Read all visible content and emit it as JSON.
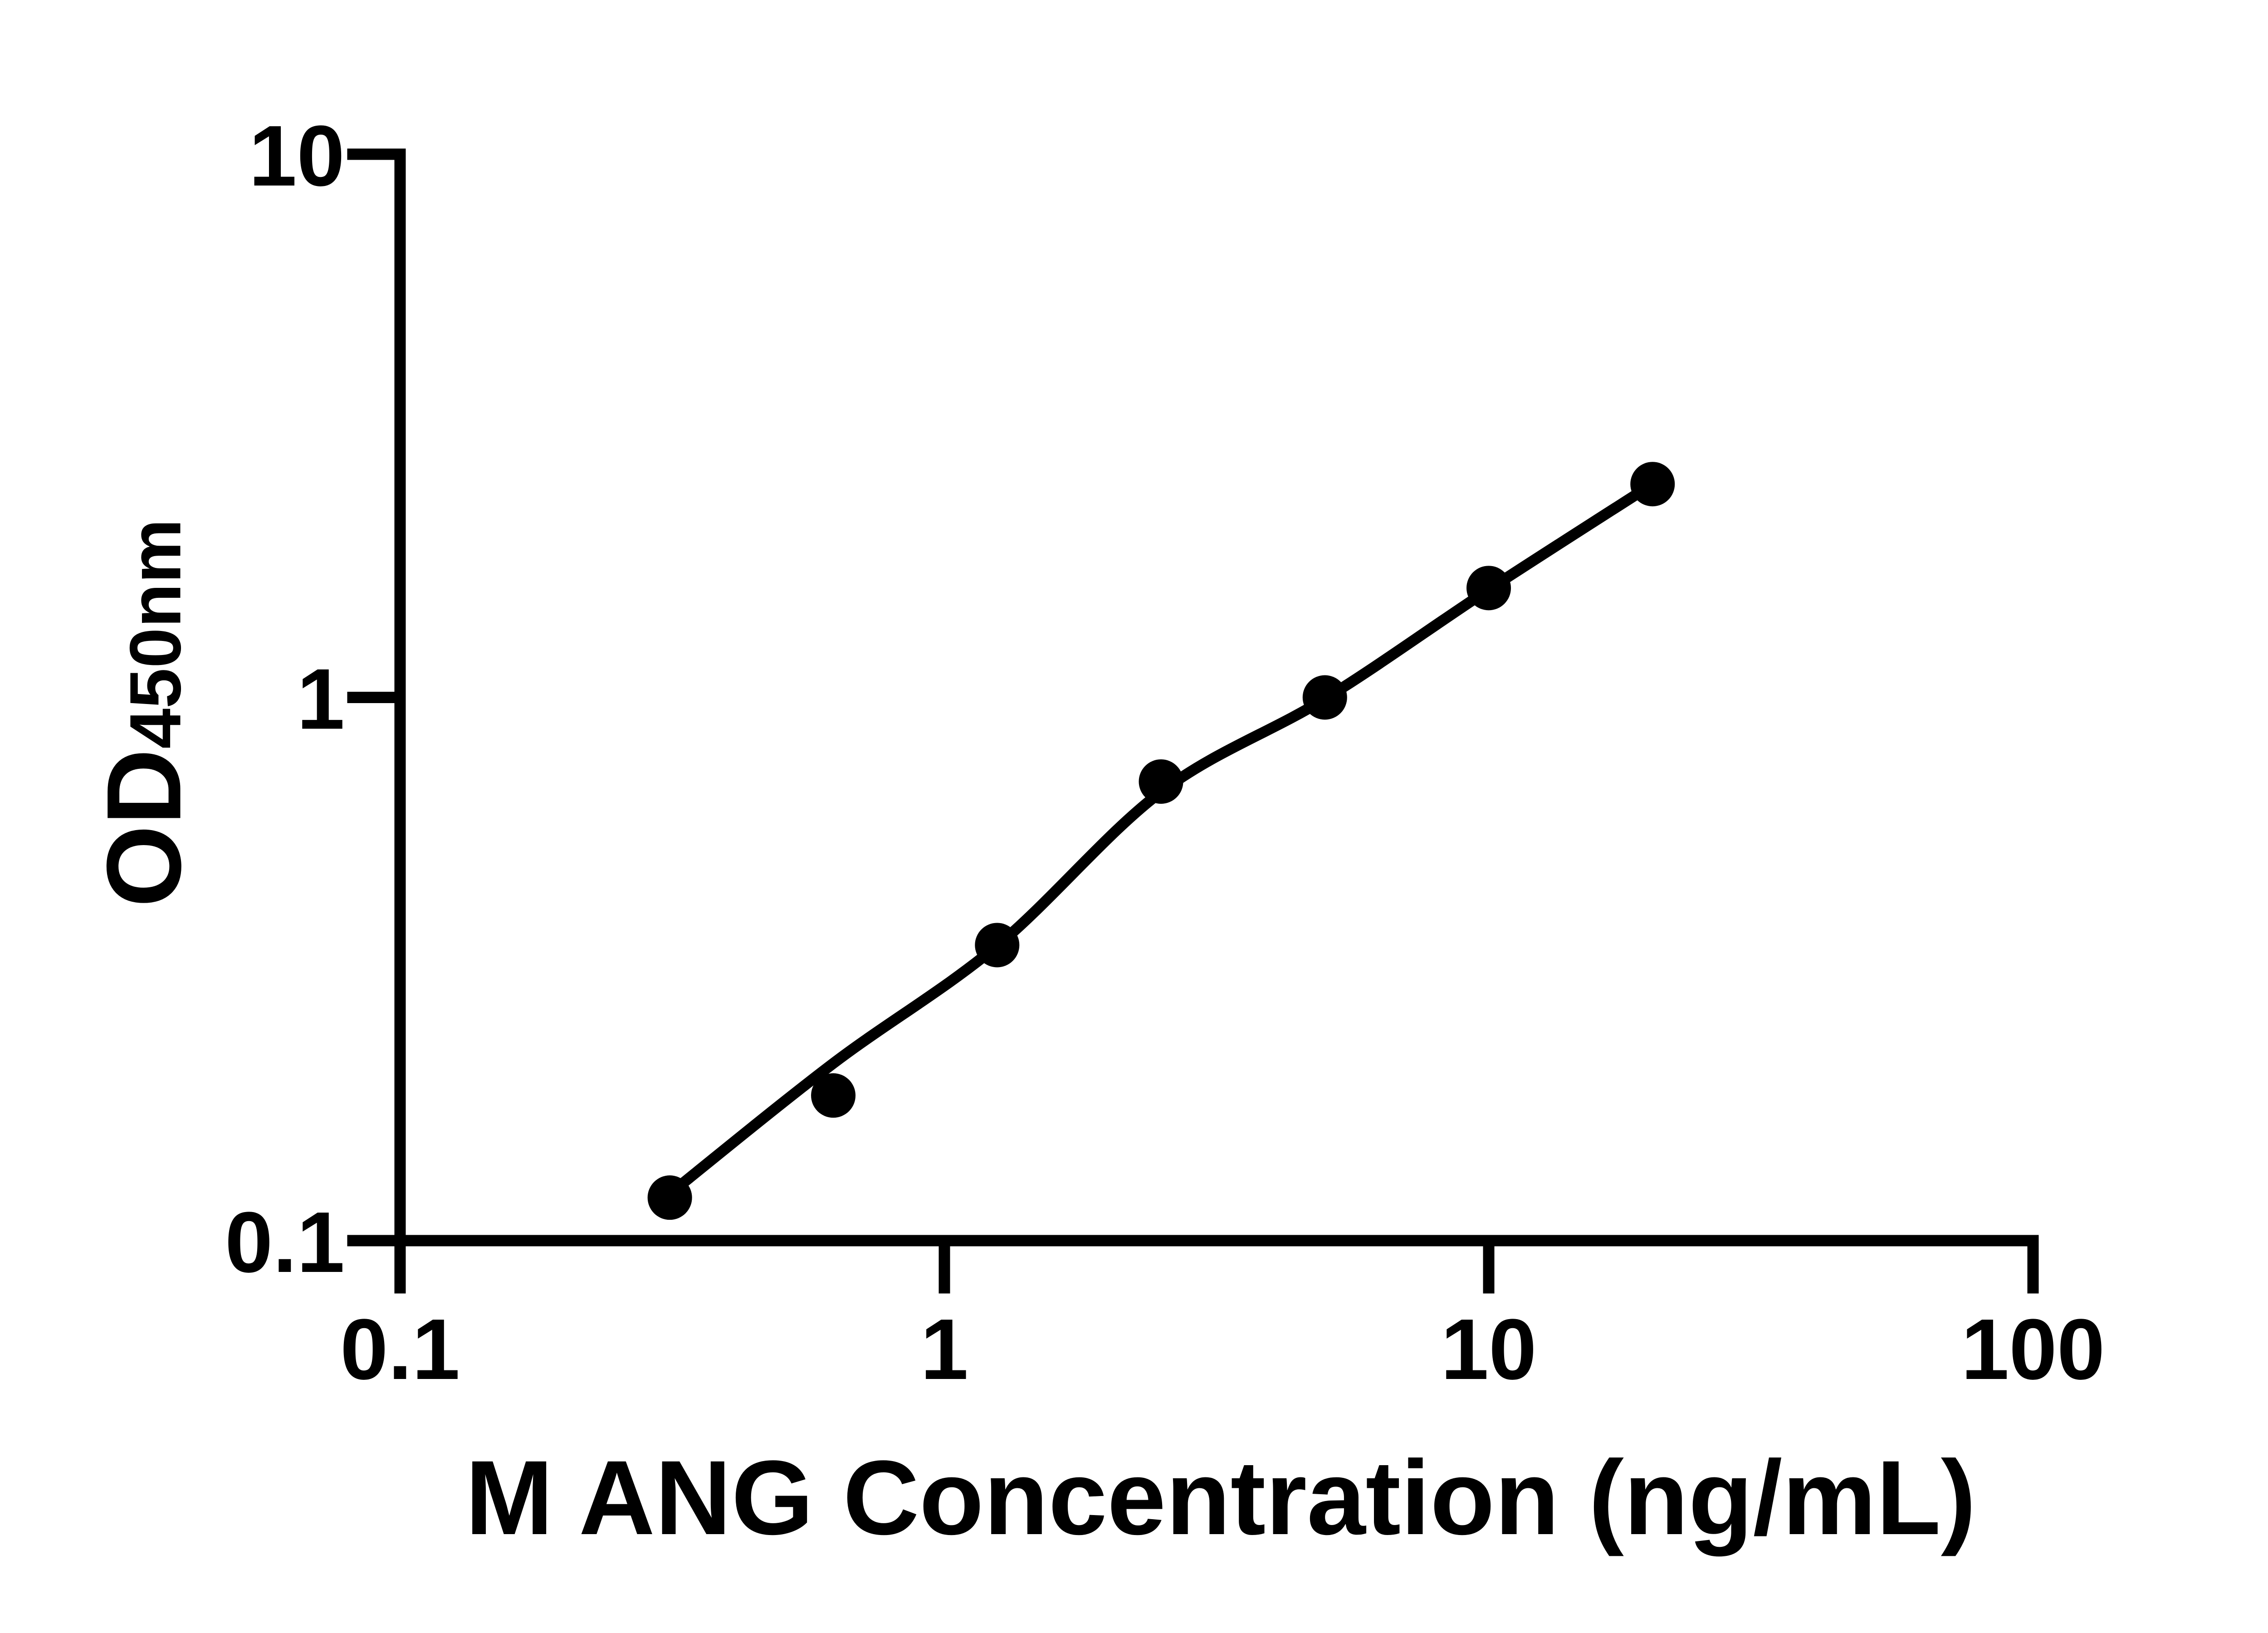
{
  "figure": {
    "background_color": "#ffffff",
    "ink_color": "#000000"
  },
  "y_axis": {
    "label_main": "OD",
    "label_sub": "450nm",
    "scale": "log",
    "min": 0.1,
    "max": 10,
    "ticks": [
      "10",
      "1",
      "0.1"
    ],
    "tick_values": [
      10,
      1,
      0.1
    ]
  },
  "x_axis": {
    "label": "M ANG Concentration (ng/mL)",
    "scale": "log",
    "min": 0.1,
    "max": 100,
    "ticks": [
      "0.1",
      "1",
      "10",
      "100"
    ],
    "tick_values": [
      0.1,
      1,
      10,
      100
    ]
  },
  "chart_data": {
    "type": "scatter",
    "title": "",
    "xlabel": "M ANG Concentration (ng/mL)",
    "ylabel": "OD450nm",
    "xscale": "log",
    "yscale": "log",
    "xlim": [
      0.1,
      100
    ],
    "ylim": [
      0.1,
      10
    ],
    "grid": false,
    "legend": "none",
    "marker_color": "#000000",
    "line_color": "#000000",
    "series": [
      {
        "name": "standard-points",
        "type": "scatter",
        "marker": "filled-circle",
        "x": [
          0.313,
          0.625,
          1.25,
          2.5,
          5,
          10,
          20
        ],
        "y": [
          0.12,
          0.185,
          0.35,
          0.7,
          1.0,
          1.59,
          2.47
        ]
      },
      {
        "name": "fit-line",
        "type": "line",
        "x": [
          0.313,
          0.625,
          1.25,
          2.5,
          5,
          10,
          20
        ],
        "y": [
          0.122,
          0.212,
          0.349,
          0.67,
          0.994,
          1.58,
          2.47
        ]
      }
    ]
  }
}
